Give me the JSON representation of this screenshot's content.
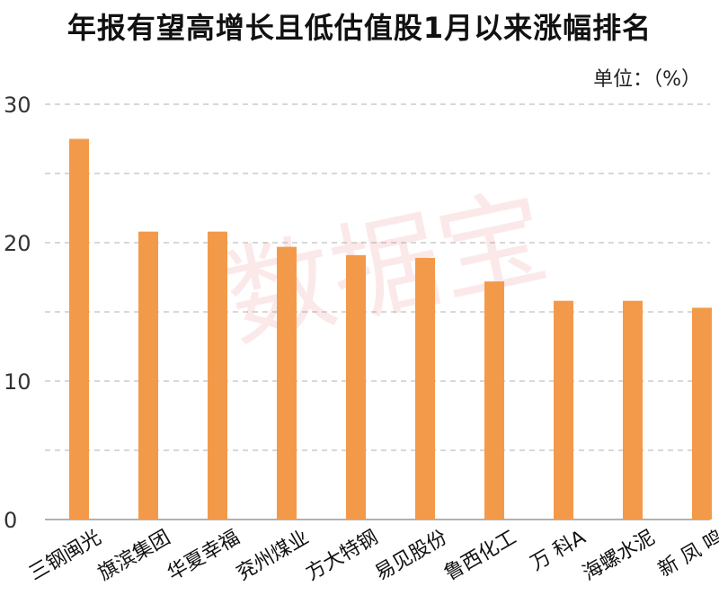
{
  "chart_data": {
    "type": "bar",
    "title": "年报有望高增长且低估值股1月以来涨幅排名",
    "unit_label": "单位：（%）",
    "watermark": "数据宝",
    "categories": [
      "三钢闽光",
      "旗滨集团",
      "华夏幸福",
      "兖州煤业",
      "方大特钢",
      "易见股份",
      "鲁西化工",
      "万 科A",
      "海螺水泥",
      "新 凤 鸣"
    ],
    "values": [
      27.5,
      20.8,
      20.8,
      19.7,
      19.1,
      18.9,
      17.2,
      15.8,
      15.8,
      15.3
    ],
    "ylim": [
      0,
      30
    ],
    "yticks": [
      0,
      10,
      20,
      30
    ],
    "yticks_labels": [
      "0",
      "10",
      "20",
      "30"
    ],
    "grid": true,
    "legend": "none",
    "bar_color": "#f39a4a",
    "grid_color": "#cccccc"
  }
}
